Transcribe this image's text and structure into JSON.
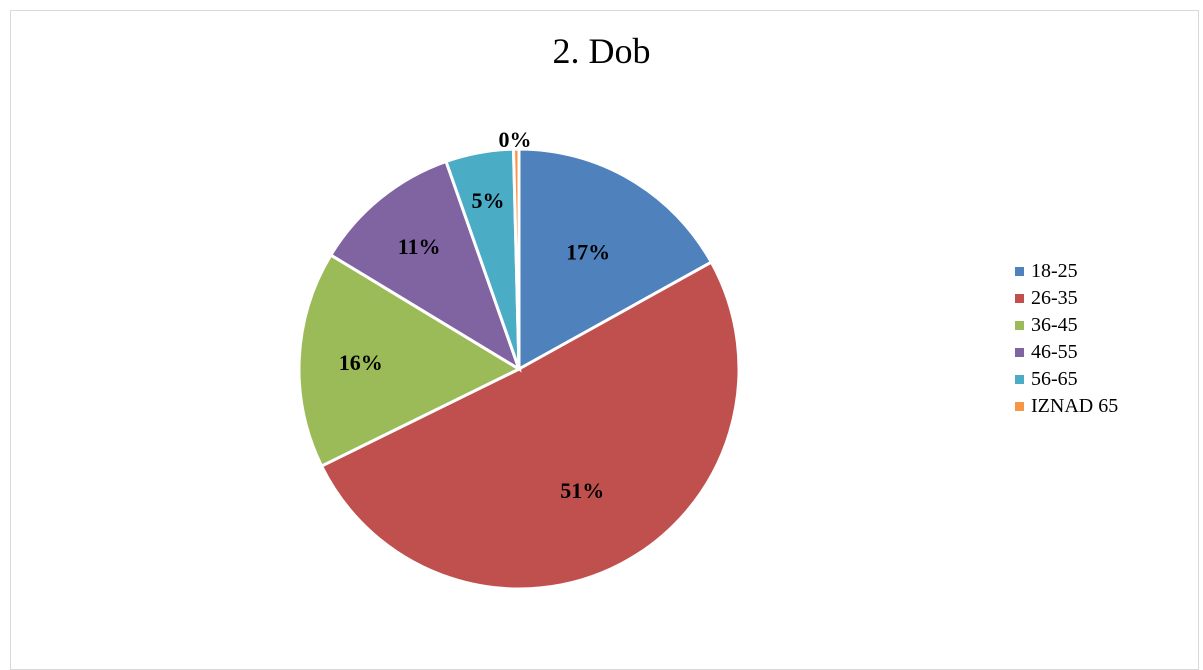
{
  "chart_data": {
    "type": "pie",
    "title": "2. Dob",
    "categories": [
      "18-25",
      "26-35",
      "36-45",
      "46-55",
      "56-65",
      "IZNAD 65"
    ],
    "values": [
      17,
      51,
      16,
      11,
      5,
      0.4
    ],
    "data_labels": [
      "17%",
      "51%",
      "16%",
      "11%",
      "5%",
      "0%"
    ],
    "colors": [
      "#4f81bd",
      "#c0504d",
      "#9bbb59",
      "#8064a2",
      "#4bacc6",
      "#f79646"
    ],
    "legend_position": "right"
  }
}
